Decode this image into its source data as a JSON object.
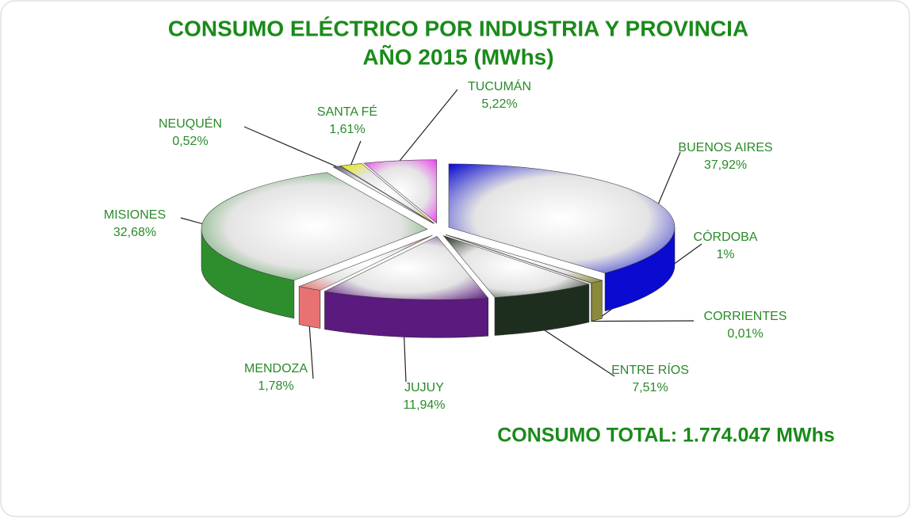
{
  "chart_data": {
    "type": "pie",
    "title": "CONSUMO ELÉCTRICO POR INDUSTRIA Y PROVINCIA",
    "subtitle": "AÑO 2015 (MWhs)",
    "annotation": "CONSUMO TOTAL: 1.774.047 MWhs",
    "categories": [
      "BUENOS AIRES",
      "CÓRDOBA",
      "CORRIENTES",
      "ENTRE RÍOS",
      "JUJUY",
      "MENDOZA",
      "MISIONES",
      "NEUQUÉN",
      "SANTA FÉ",
      "TUCUMÁN"
    ],
    "values": [
      37.92,
      1,
      0.01,
      7.51,
      11.94,
      1.78,
      32.68,
      0.52,
      1.61,
      5.22
    ],
    "value_labels": [
      "37,92%",
      "1%",
      "0,01%",
      "7,51%",
      "11,94%",
      "1,78%",
      "32,68%",
      "0,52%",
      "1,61%",
      "5,22%"
    ],
    "colors": [
      "#0a0ad0",
      "#8a8a3a",
      "#6a6a6a",
      "#1e2e1e",
      "#5a1a7e",
      "#e87272",
      "#2e8e2e",
      "#555a70",
      "#e6e600",
      "#ee44ee"
    ]
  }
}
